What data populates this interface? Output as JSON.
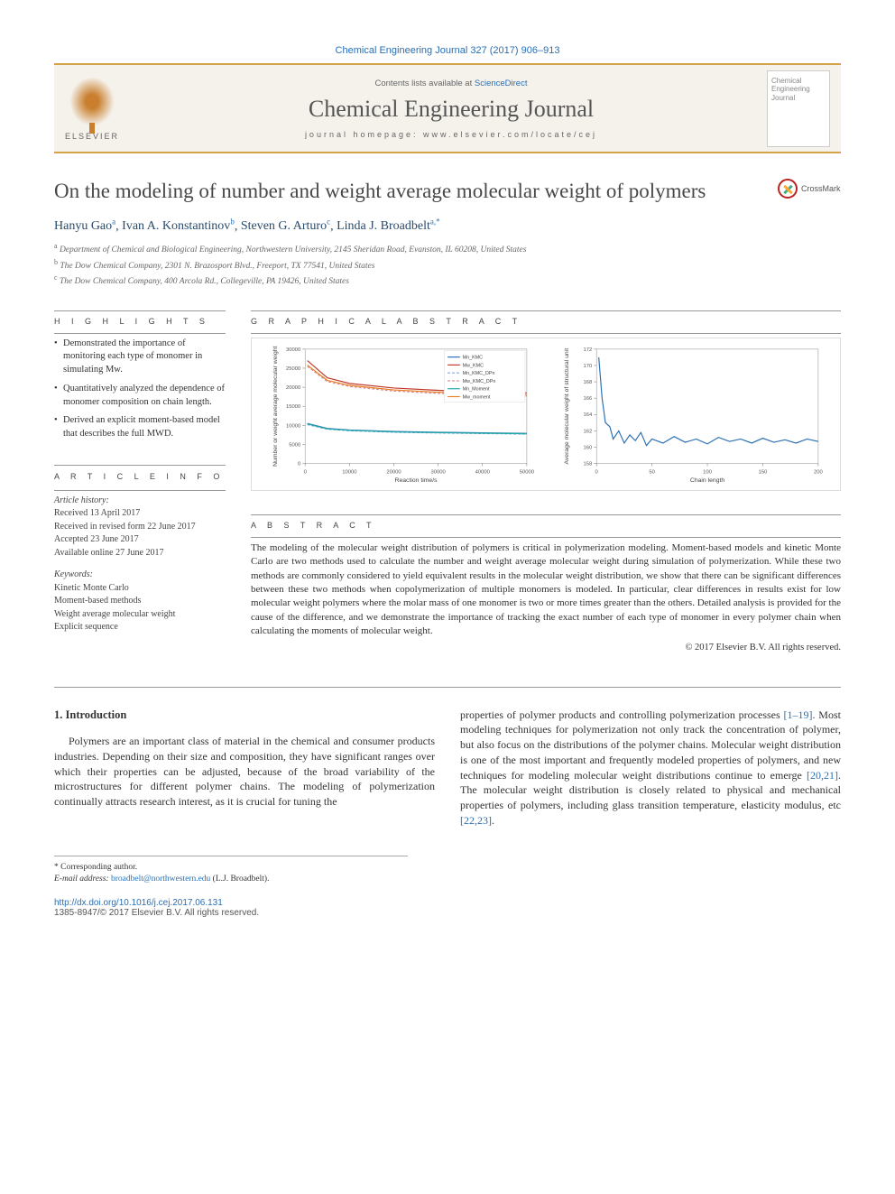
{
  "citation": "Chemical Engineering Journal 327 (2017) 906–913",
  "header": {
    "contents_prefix": "Contents lists available at ",
    "contents_link": "ScienceDirect",
    "journal_name": "Chemical Engineering Journal",
    "homepage_prefix": "journal homepage: ",
    "homepage_url": "www.elsevier.com/locate/cej",
    "publisher_label": "ELSEVIER",
    "cover_text": "Chemical Engineering Journal"
  },
  "crossmark_label": "CrossMark",
  "title": "On the modeling of number and weight average molecular weight of polymers",
  "authors_html": "Hanyu Gao|a|, Ivan A. Konstantinov|b|, Steven G. Arturo|c|, Linda J. Broadbelt|a,*",
  "authors": [
    {
      "name": "Hanyu Gao",
      "sup": "a"
    },
    {
      "name": "Ivan A. Konstantinov",
      "sup": "b"
    },
    {
      "name": "Steven G. Arturo",
      "sup": "c"
    },
    {
      "name": "Linda J. Broadbelt",
      "sup": "a,*"
    }
  ],
  "affiliations": [
    {
      "sup": "a",
      "text": "Department of Chemical and Biological Engineering, Northwestern University, 2145 Sheridan Road, Evanston, IL 60208, United States"
    },
    {
      "sup": "b",
      "text": "The Dow Chemical Company, 2301 N. Brazosport Blvd., Freeport, TX 77541, United States"
    },
    {
      "sup": "c",
      "text": "The Dow Chemical Company, 400 Arcola Rd., Collegeville, PA 19426, United States"
    }
  ],
  "labels": {
    "highlights": "H I G H L I G H T S",
    "graphical": "G R A P H I C A L  A B S T R A C T",
    "article_info": "A R T I C L E  I N F O",
    "abstract": "A B S T R A C T"
  },
  "highlights": [
    "Demonstrated the importance of monitoring each type of monomer in simulating Mw.",
    "Quantitatively analyzed the dependence of monomer composition on chain length.",
    "Derived an explicit moment-based model that describes the full MWD."
  ],
  "article_info": {
    "history_label": "Article history:",
    "history": [
      "Received 13 April 2017",
      "Received in revised form 22 June 2017",
      "Accepted 23 June 2017",
      "Available online 27 June 2017"
    ],
    "keywords_label": "Keywords:",
    "keywords": [
      "Kinetic Monte Carlo",
      "Moment-based methods",
      "Weight average molecular weight",
      "Explicit sequence"
    ]
  },
  "abstract": "The modeling of the molecular weight distribution of polymers is critical in polymerization modeling. Moment-based models and kinetic Monte Carlo are two methods used to calculate the number and weight average molecular weight during simulation of polymerization. While these two methods are commonly considered to yield equivalent results in the molecular weight distribution, we show that there can be significant differences between these two methods when copolymerization of multiple monomers is modeled. In particular, clear differences in results exist for low molecular weight polymers where the molar mass of one monomer is two or more times greater than the others. Detailed analysis is provided for the cause of the difference, and we demonstrate the importance of tracking the exact number of each type of monomer in every polymer chain when calculating the moments of molecular weight.",
  "copyright": "© 2017 Elsevier B.V. All rights reserved.",
  "body": {
    "heading": "1. Introduction",
    "p1": "Polymers are an important class of material in the chemical and consumer products industries. Depending on their size and composition, they have significant ranges over which their properties can be adjusted, because of the broad variability of the microstructures for different polymer chains. The modeling of polymerization continually attracts research interest, as it is crucial for tuning the",
    "p2a": "properties of polymer products and controlling polymerization processes ",
    "ref1": "[1–19]",
    "p2b": ". Most modeling techniques for polymerization not only track the concentration of polymer, but also focus on the distributions of the polymer chains. Molecular weight distribution is one of the most important and frequently modeled properties of polymers, and new techniques for modeling molecular weight distributions continue to emerge ",
    "ref2": "[20,21]",
    "p2c": ". The molecular weight distribution is closely related to physical and mechanical properties of polymers, including glass transition temperature, elasticity modulus, etc ",
    "ref3": "[22,23]",
    "p2d": "."
  },
  "footer": {
    "corr_label": "* Corresponding author.",
    "email_label": "E-mail address: ",
    "email": "broadbelt@northwestern.edu",
    "email_person": " (L.J. Broadbelt).",
    "doi": "http://dx.doi.org/10.1016/j.cej.2017.06.131",
    "issn": "1385-8947/© 2017 Elsevier B.V. All rights reserved."
  },
  "chart1": {
    "type": "line",
    "xlabel": "Reaction time/s",
    "ylabel": "Number or weight average molecular weight",
    "xlim": [
      0,
      50000
    ],
    "xtick_step": 10000,
    "ylim": [
      0,
      30000
    ],
    "ytick_step": 5000,
    "legend": [
      "Mn_KMC",
      "Mw_KMC",
      "Mn_KMC_DPn",
      "Mw_KMC_DPn",
      "Mn_Moment",
      "Mw_moment"
    ],
    "legend_colors": [
      "#2a6fb5",
      "#c0392b",
      "#78a8d8",
      "#d88a8a",
      "#1fa8a8",
      "#e67e22"
    ],
    "legend_dash": [
      "solid",
      "solid",
      "dash",
      "dash",
      "solid",
      "solid"
    ],
    "label_fontsize": 7,
    "tick_fontsize": 6,
    "grid_color": "#e0e0e0",
    "background_color": "#ffffff",
    "series": [
      {
        "color": "#2a6fb5",
        "dash": "solid",
        "pts": [
          [
            500,
            10500
          ],
          [
            5000,
            9200
          ],
          [
            10000,
            8800
          ],
          [
            20000,
            8400
          ],
          [
            30000,
            8200
          ],
          [
            40000,
            8050
          ],
          [
            50000,
            7900
          ]
        ]
      },
      {
        "color": "#c0392b",
        "dash": "solid",
        "pts": [
          [
            500,
            27000
          ],
          [
            5000,
            22500
          ],
          [
            10000,
            21000
          ],
          [
            20000,
            19800
          ],
          [
            30000,
            19200
          ],
          [
            40000,
            18800
          ],
          [
            50000,
            18500
          ]
        ]
      },
      {
        "color": "#78a8d8",
        "dash": "dash",
        "pts": [
          [
            500,
            10200
          ],
          [
            5000,
            9000
          ],
          [
            10000,
            8600
          ],
          [
            20000,
            8200
          ],
          [
            30000,
            8000
          ],
          [
            40000,
            7850
          ],
          [
            50000,
            7700
          ]
        ]
      },
      {
        "color": "#d88a8a",
        "dash": "dash",
        "pts": [
          [
            500,
            25500
          ],
          [
            5000,
            21500
          ],
          [
            10000,
            20200
          ],
          [
            20000,
            19000
          ],
          [
            30000,
            18400
          ],
          [
            40000,
            18000
          ],
          [
            50000,
            17700
          ]
        ]
      },
      {
        "color": "#1fa8a8",
        "dash": "solid",
        "pts": [
          [
            500,
            10400
          ],
          [
            5000,
            9100
          ],
          [
            10000,
            8700
          ],
          [
            20000,
            8300
          ],
          [
            30000,
            8100
          ],
          [
            40000,
            7950
          ],
          [
            50000,
            7800
          ]
        ]
      },
      {
        "color": "#e67e22",
        "dash": "solid",
        "pts": [
          [
            500,
            25800
          ],
          [
            5000,
            21800
          ],
          [
            10000,
            20500
          ],
          [
            20000,
            19300
          ],
          [
            30000,
            18700
          ],
          [
            40000,
            18300
          ],
          [
            50000,
            18000
          ]
        ]
      }
    ]
  },
  "chart2": {
    "type": "line",
    "xlabel": "Chain length",
    "ylabel": "Average molecular weight of structural unit",
    "xlim": [
      0,
      200
    ],
    "xtick_step": 50,
    "ylim": [
      158,
      172
    ],
    "ytick_step": 2,
    "label_fontsize": 7,
    "tick_fontsize": 6,
    "grid_color": "#e0e0e0",
    "background_color": "#ffffff",
    "series": [
      {
        "color": "#2a6fb5",
        "dash": "solid",
        "pts": [
          [
            2,
            171
          ],
          [
            5,
            166
          ],
          [
            8,
            163
          ],
          [
            12,
            162.5
          ],
          [
            15,
            161
          ],
          [
            20,
            162
          ],
          [
            25,
            160.5
          ],
          [
            30,
            161.5
          ],
          [
            35,
            160.8
          ],
          [
            40,
            161.8
          ],
          [
            45,
            160.2
          ],
          [
            50,
            161
          ],
          [
            60,
            160.5
          ],
          [
            70,
            161.3
          ],
          [
            80,
            160.6
          ],
          [
            90,
            161
          ],
          [
            100,
            160.4
          ],
          [
            110,
            161.2
          ],
          [
            120,
            160.7
          ],
          [
            130,
            161
          ],
          [
            140,
            160.5
          ],
          [
            150,
            161.1
          ],
          [
            160,
            160.6
          ],
          [
            170,
            160.9
          ],
          [
            180,
            160.5
          ],
          [
            190,
            161
          ],
          [
            200,
            160.7
          ]
        ]
      }
    ]
  }
}
